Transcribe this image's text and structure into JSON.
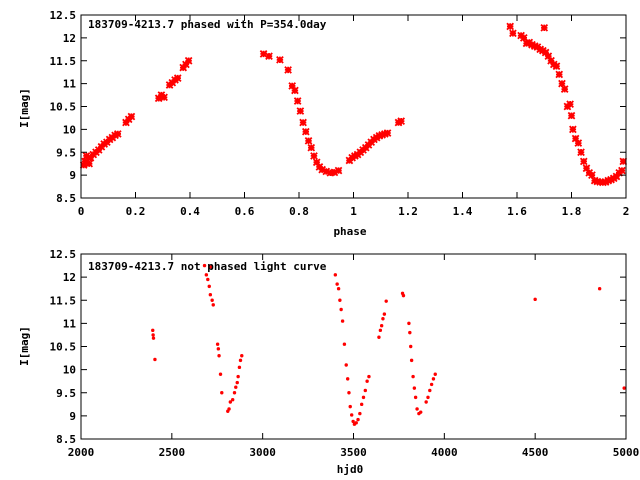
{
  "colors": {
    "points": "#ff0000",
    "frame": "#000000",
    "background": "#ffffff"
  },
  "chart_data": [
    {
      "type": "scatter",
      "title": "183709-4213.7 phased with P=354.0day",
      "xlabel": "phase",
      "ylabel": "I[mag]",
      "xlim": [
        0,
        2
      ],
      "ylim": [
        12.5,
        8.5
      ],
      "y_inverted": true,
      "grid": false,
      "x_ticks": [
        0,
        0.2,
        0.4,
        0.6,
        0.8,
        1,
        1.2,
        1.4,
        1.6,
        1.8,
        2
      ],
      "x_tick_labels": [
        "0",
        "0.2",
        "0.4",
        "0.6",
        "0.8",
        "1",
        "1.2",
        "1.4",
        "1.6",
        "1.8",
        "2"
      ],
      "y_ticks": [
        8.5,
        9,
        9.5,
        10,
        10.5,
        11,
        11.5,
        12,
        12.5
      ],
      "y_tick_labels": [
        "8.5",
        "9",
        "9.5",
        "10",
        "10.5",
        "11",
        "11.5",
        "12",
        "12.5"
      ],
      "marker": "cross",
      "series": [
        {
          "points": [
            [
              0.01,
              9.22
            ],
            [
              0.015,
              9.3
            ],
            [
              0.02,
              9.42
            ],
            [
              0.03,
              9.25
            ],
            [
              0.035,
              9.38
            ],
            [
              0.045,
              9.45
            ],
            [
              0.055,
              9.5
            ],
            [
              0.065,
              9.55
            ],
            [
              0.075,
              9.62
            ],
            [
              0.085,
              9.68
            ],
            [
              0.095,
              9.72
            ],
            [
              0.105,
              9.78
            ],
            [
              0.115,
              9.82
            ],
            [
              0.125,
              9.87
            ],
            [
              0.135,
              9.9
            ],
            [
              0.165,
              10.15
            ],
            [
              0.175,
              10.22
            ],
            [
              0.185,
              10.28
            ],
            [
              0.285,
              10.68
            ],
            [
              0.295,
              10.75
            ],
            [
              0.305,
              10.7
            ],
            [
              0.325,
              10.97
            ],
            [
              0.335,
              11.02
            ],
            [
              0.345,
              11.08
            ],
            [
              0.355,
              11.12
            ],
            [
              0.375,
              11.35
            ],
            [
              0.385,
              11.42
            ],
            [
              0.395,
              11.5
            ],
            [
              0.67,
              11.65
            ],
            [
              0.69,
              11.6
            ],
            [
              0.73,
              11.52
            ],
            [
              0.76,
              11.3
            ],
            [
              0.775,
              10.95
            ],
            [
              0.785,
              10.85
            ],
            [
              0.795,
              10.62
            ],
            [
              0.805,
              10.4
            ],
            [
              0.815,
              10.15
            ],
            [
              0.825,
              9.95
            ],
            [
              0.835,
              9.75
            ],
            [
              0.845,
              9.6
            ],
            [
              0.855,
              9.42
            ],
            [
              0.865,
              9.28
            ],
            [
              0.875,
              9.18
            ],
            [
              0.885,
              9.12
            ],
            [
              0.9,
              9.08
            ],
            [
              0.915,
              9.05
            ],
            [
              0.93,
              9.06
            ],
            [
              0.945,
              9.1
            ],
            [
              0.985,
              9.32
            ],
            [
              0.995,
              9.38
            ],
            [
              1.005,
              9.42
            ],
            [
              1.015,
              9.45
            ],
            [
              1.025,
              9.5
            ],
            [
              1.035,
              9.55
            ],
            [
              1.045,
              9.6
            ],
            [
              1.055,
              9.66
            ],
            [
              1.065,
              9.72
            ],
            [
              1.075,
              9.78
            ],
            [
              1.085,
              9.82
            ],
            [
              1.095,
              9.86
            ],
            [
              1.105,
              9.88
            ],
            [
              1.115,
              9.9
            ],
            [
              1.125,
              9.92
            ],
            [
              1.165,
              10.15
            ],
            [
              1.175,
              10.18
            ],
            [
              1.575,
              12.25
            ],
            [
              1.585,
              12.1
            ],
            [
              1.615,
              12.05
            ],
            [
              1.625,
              12.0
            ],
            [
              1.635,
              11.88
            ],
            [
              1.645,
              11.9
            ],
            [
              1.655,
              11.85
            ],
            [
              1.665,
              11.82
            ],
            [
              1.675,
              11.8
            ],
            [
              1.685,
              11.75
            ],
            [
              1.695,
              11.72
            ],
            [
              1.7,
              12.22
            ],
            [
              1.705,
              11.68
            ],
            [
              1.715,
              11.6
            ],
            [
              1.725,
              11.5
            ],
            [
              1.735,
              11.42
            ],
            [
              1.745,
              11.38
            ],
            [
              1.755,
              11.2
            ],
            [
              1.765,
              11.0
            ],
            [
              1.775,
              10.88
            ],
            [
              1.785,
              10.5
            ],
            [
              1.795,
              10.55
            ],
            [
              1.8,
              10.3
            ],
            [
              1.805,
              10.0
            ],
            [
              1.815,
              9.8
            ],
            [
              1.825,
              9.7
            ],
            [
              1.835,
              9.5
            ],
            [
              1.845,
              9.3
            ],
            [
              1.855,
              9.15
            ],
            [
              1.865,
              9.05
            ],
            [
              1.875,
              9.0
            ],
            [
              1.885,
              8.88
            ],
            [
              1.895,
              8.86
            ],
            [
              1.905,
              8.85
            ],
            [
              1.915,
              8.84
            ],
            [
              1.925,
              8.85
            ],
            [
              1.935,
              8.88
            ],
            [
              1.945,
              8.9
            ],
            [
              1.955,
              8.93
            ],
            [
              1.965,
              8.97
            ],
            [
              1.975,
              9.05
            ],
            [
              1.985,
              9.1
            ],
            [
              1.99,
              9.3
            ]
          ]
        }
      ]
    },
    {
      "type": "scatter",
      "title": "183709-4213.7 not phased light curve",
      "xlabel": "hjd0",
      "ylabel": "I[mag]",
      "xlim": [
        2000,
        5000
      ],
      "ylim": [
        12.5,
        8.5
      ],
      "y_inverted": true,
      "grid": false,
      "x_ticks": [
        2000,
        2500,
        3000,
        3500,
        4000,
        4500,
        5000
      ],
      "x_tick_labels": [
        "2000",
        "2500",
        "3000",
        "3500",
        "4000",
        "4500",
        "5000"
      ],
      "y_ticks": [
        8.5,
        9,
        9.5,
        10,
        10.5,
        11,
        11.5,
        12,
        12.5
      ],
      "y_tick_labels": [
        "8.5",
        "9",
        "9.5",
        "10",
        "10.5",
        "11",
        "11.5",
        "12",
        "12.5"
      ],
      "marker": "dot",
      "series": [
        {
          "points": [
            [
              2395,
              10.85
            ],
            [
              2397,
              10.75
            ],
            [
              2399,
              10.68
            ],
            [
              2407,
              10.22
            ],
            [
              2680,
              12.25
            ],
            [
              2690,
              12.05
            ],
            [
              2698,
              11.95
            ],
            [
              2706,
              11.8
            ],
            [
              2712,
              11.62
            ],
            [
              2716,
              12.22
            ],
            [
              2722,
              11.5
            ],
            [
              2728,
              11.4
            ],
            [
              2752,
              10.55
            ],
            [
              2756,
              10.45
            ],
            [
              2760,
              10.3
            ],
            [
              2768,
              9.9
            ],
            [
              2775,
              9.5
            ],
            [
              2808,
              9.1
            ],
            [
              2815,
              9.15
            ],
            [
              2822,
              9.3
            ],
            [
              2835,
              9.35
            ],
            [
              2845,
              9.5
            ],
            [
              2852,
              9.62
            ],
            [
              2860,
              9.72
            ],
            [
              2865,
              9.85
            ],
            [
              2872,
              10.05
            ],
            [
              2878,
              10.2
            ],
            [
              2885,
              10.3
            ],
            [
              3400,
              12.05
            ],
            [
              3410,
              11.85
            ],
            [
              3418,
              11.75
            ],
            [
              3425,
              11.5
            ],
            [
              3432,
              11.3
            ],
            [
              3440,
              11.05
            ],
            [
              3450,
              10.55
            ],
            [
              3460,
              10.1
            ],
            [
              3468,
              9.8
            ],
            [
              3475,
              9.5
            ],
            [
              3482,
              9.2
            ],
            [
              3490,
              9.02
            ],
            [
              3498,
              8.88
            ],
            [
              3505,
              8.82
            ],
            [
              3515,
              8.85
            ],
            [
              3525,
              8.92
            ],
            [
              3535,
              9.05
            ],
            [
              3545,
              9.25
            ],
            [
              3555,
              9.4
            ],
            [
              3565,
              9.55
            ],
            [
              3575,
              9.75
            ],
            [
              3585,
              9.85
            ],
            [
              3640,
              10.7
            ],
            [
              3648,
              10.85
            ],
            [
              3655,
              10.95
            ],
            [
              3662,
              11.1
            ],
            [
              3670,
              11.2
            ],
            [
              3680,
              11.48
            ],
            [
              3770,
              11.65
            ],
            [
              3775,
              11.6
            ],
            [
              3805,
              11.0
            ],
            [
              3810,
              10.8
            ],
            [
              3815,
              10.5
            ],
            [
              3820,
              10.2
            ],
            [
              3828,
              9.85
            ],
            [
              3835,
              9.6
            ],
            [
              3842,
              9.4
            ],
            [
              3850,
              9.15
            ],
            [
              3860,
              9.05
            ],
            [
              3870,
              9.08
            ],
            [
              3900,
              9.3
            ],
            [
              3910,
              9.4
            ],
            [
              3920,
              9.55
            ],
            [
              3930,
              9.68
            ],
            [
              3940,
              9.8
            ],
            [
              3950,
              9.9
            ],
            [
              4500,
              11.52
            ],
            [
              4855,
              11.75
            ],
            [
              4990,
              9.6
            ]
          ]
        }
      ]
    }
  ]
}
